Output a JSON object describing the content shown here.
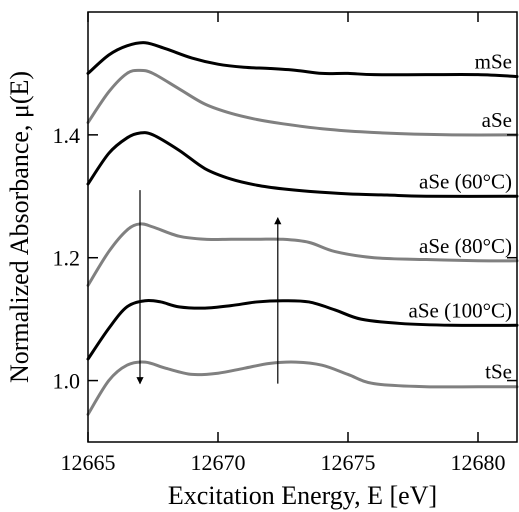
{
  "chart_data": {
    "type": "line",
    "xlabel": "Excitation Energy, E [eV]",
    "ylabel": "Normalized Absorbance, μ(E)",
    "xlim": [
      12665,
      12681.5
    ],
    "ylim": [
      0.9,
      1.6
    ],
    "xticks": [
      12665,
      12670,
      12675,
      12680
    ],
    "yticks": [
      1.0,
      1.2,
      1.4
    ],
    "grid": false,
    "colors": {
      "dark": "#000000",
      "gray": "#808080"
    },
    "series": [
      {
        "name": "mSe",
        "color": "#000000",
        "x": [
          12665,
          12665.8,
          12666.5,
          12667.2,
          12668,
          12669,
          12670,
          12671,
          12672,
          12673,
          12674,
          12675,
          12676,
          12678,
          12680,
          12681.5
        ],
        "y": [
          1.5,
          1.53,
          1.545,
          1.55,
          1.54,
          1.525,
          1.515,
          1.51,
          1.508,
          1.505,
          1.5,
          1.5,
          1.498,
          1.498,
          1.498,
          1.495
        ]
      },
      {
        "name": "aSe",
        "color": "#808080",
        "x": [
          12665,
          12665.8,
          12666.5,
          12667,
          12667.5,
          12668.5,
          12669.5,
          12670.5,
          12671.5,
          12672.5,
          12674,
          12675.5,
          12677,
          12679,
          12681.5
        ],
        "y": [
          1.42,
          1.47,
          1.5,
          1.505,
          1.5,
          1.475,
          1.45,
          1.435,
          1.425,
          1.418,
          1.41,
          1.405,
          1.402,
          1.4,
          1.4
        ]
      },
      {
        "name": "aSe (60°C)",
        "color": "#000000",
        "x": [
          12665,
          12665.8,
          12666.5,
          12667,
          12667.5,
          12668.5,
          12669.5,
          12670.5,
          12671.5,
          12672.5,
          12673.5,
          12675,
          12676.5,
          12678,
          12681.5
        ],
        "y": [
          1.32,
          1.37,
          1.395,
          1.403,
          1.4,
          1.375,
          1.345,
          1.328,
          1.318,
          1.312,
          1.308,
          1.304,
          1.302,
          1.3,
          1.3
        ]
      },
      {
        "name": "aSe (80°C)",
        "color": "#808080",
        "x": [
          12665,
          12665.8,
          12666.5,
          12667,
          12667.5,
          12668.5,
          12669.5,
          12670.5,
          12671.5,
          12672.5,
          12673.5,
          12674.5,
          12676,
          12678,
          12680,
          12681.5
        ],
        "y": [
          1.155,
          1.21,
          1.245,
          1.255,
          1.25,
          1.235,
          1.23,
          1.23,
          1.23,
          1.23,
          1.225,
          1.21,
          1.2,
          1.197,
          1.195,
          1.195
        ]
      },
      {
        "name": "aSe (100°C)",
        "color": "#000000",
        "x": [
          12665,
          12665.8,
          12666.5,
          12667.2,
          12667.8,
          12668.5,
          12669.5,
          12670.5,
          12671.5,
          12672.5,
          12673.5,
          12674.5,
          12675.5,
          12677,
          12679,
          12681.5
        ],
        "y": [
          1.035,
          1.085,
          1.12,
          1.13,
          1.128,
          1.12,
          1.118,
          1.122,
          1.128,
          1.13,
          1.128,
          1.115,
          1.1,
          1.093,
          1.09,
          1.09
        ]
      },
      {
        "name": "tSe",
        "color": "#808080",
        "x": [
          12665,
          12665.8,
          12666.5,
          12667.2,
          12668,
          12669,
          12670,
          12671,
          12672,
          12673,
          12674,
          12675,
          12676,
          12678,
          12680,
          12681.5
        ],
        "y": [
          0.945,
          1.0,
          1.025,
          1.03,
          1.02,
          1.01,
          1.012,
          1.02,
          1.028,
          1.03,
          1.025,
          1.01,
          0.995,
          0.99,
          0.99,
          0.99
        ]
      }
    ],
    "annotations": [
      {
        "type": "arrow",
        "direction": "down",
        "x": 12667,
        "y_from": 1.31,
        "y_to": 0.995
      },
      {
        "type": "arrow",
        "direction": "up",
        "x": 12672.3,
        "y_from": 0.995,
        "y_to": 1.265
      }
    ]
  }
}
